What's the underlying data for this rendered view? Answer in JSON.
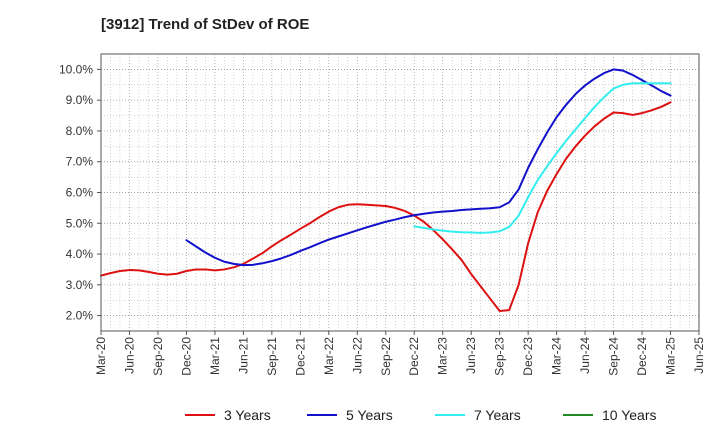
{
  "chart_data": {
    "type": "line",
    "title": "[3912]  Trend of StDev of ROE",
    "xlabel": "",
    "ylabel": "",
    "x_ticks": [
      "Mar-20",
      "Jun-20",
      "Sep-20",
      "Dec-20",
      "Mar-21",
      "Jun-21",
      "Sep-21",
      "Dec-21",
      "Mar-22",
      "Jun-22",
      "Sep-22",
      "Dec-22",
      "Mar-23",
      "Jun-23",
      "Sep-23",
      "Dec-23",
      "Mar-24",
      "Jun-24",
      "Sep-24",
      "Dec-24",
      "Mar-25",
      "Jun-25"
    ],
    "y_ticks": [
      "2.0%",
      "3.0%",
      "4.0%",
      "5.0%",
      "6.0%",
      "7.0%",
      "8.0%",
      "9.0%",
      "10.0%"
    ],
    "ylim": [
      1.5,
      10.5
    ],
    "grid": true,
    "legend_position": "bottom",
    "series": [
      {
        "name": "3 Years",
        "color": "#dd1111",
        "x": [
          "2020-03",
          "2020-04",
          "2020-05",
          "2020-06",
          "2020-07",
          "2020-08",
          "2020-09",
          "2020-10",
          "2020-11",
          "2020-12",
          "2021-01",
          "2021-02",
          "2021-03",
          "2021-04",
          "2021-05",
          "2021-06",
          "2021-07",
          "2021-08",
          "2021-09",
          "2021-10",
          "2021-11",
          "2021-12",
          "2022-01",
          "2022-02",
          "2022-03",
          "2022-04",
          "2022-05",
          "2022-06",
          "2022-07",
          "2022-08",
          "2022-09",
          "2022-10",
          "2022-11",
          "2022-12",
          "2023-01",
          "2023-02",
          "2023-03",
          "2023-04",
          "2023-05",
          "2023-06",
          "2023-07",
          "2023-08",
          "2023-09",
          "2023-10",
          "2023-11",
          "2023-12",
          "2024-01",
          "2024-02",
          "2024-03",
          "2024-04",
          "2024-05",
          "2024-06",
          "2024-07",
          "2024-08",
          "2024-09",
          "2024-10",
          "2024-11",
          "2024-12",
          "2025-01",
          "2025-02",
          "2025-03"
        ],
        "values": [
          3.3,
          3.38,
          3.45,
          3.48,
          3.47,
          3.42,
          3.36,
          3.33,
          3.36,
          3.45,
          3.5,
          3.5,
          3.47,
          3.5,
          3.57,
          3.68,
          3.85,
          4.03,
          4.25,
          4.45,
          4.63,
          4.82,
          5.0,
          5.2,
          5.38,
          5.52,
          5.6,
          5.62,
          5.6,
          5.58,
          5.56,
          5.5,
          5.4,
          5.25,
          5.05,
          4.78,
          4.48,
          4.15,
          3.8,
          3.35,
          2.95,
          2.55,
          2.15,
          2.18,
          3.0,
          4.35,
          5.35,
          6.05,
          6.6,
          7.1,
          7.5,
          7.85,
          8.15,
          8.4,
          8.6,
          8.58,
          8.52,
          8.58,
          8.67,
          8.78,
          8.93
        ]
      },
      {
        "name": "5 Years",
        "color": "#1111cc",
        "x": [
          "2020-12",
          "2021-01",
          "2021-02",
          "2021-03",
          "2021-04",
          "2021-05",
          "2021-06",
          "2021-07",
          "2021-08",
          "2021-09",
          "2021-10",
          "2021-11",
          "2021-12",
          "2022-01",
          "2022-02",
          "2022-03",
          "2022-04",
          "2022-05",
          "2022-06",
          "2022-07",
          "2022-08",
          "2022-09",
          "2022-10",
          "2022-11",
          "2022-12",
          "2023-01",
          "2023-02",
          "2023-03",
          "2023-04",
          "2023-05",
          "2023-06",
          "2023-07",
          "2023-08",
          "2023-09",
          "2023-10",
          "2023-11",
          "2023-12",
          "2024-01",
          "2024-02",
          "2024-03",
          "2024-04",
          "2024-05",
          "2024-06",
          "2024-07",
          "2024-08",
          "2024-09",
          "2024-10",
          "2024-11",
          "2024-12",
          "2025-01",
          "2025-02",
          "2025-03"
        ],
        "values": [
          4.45,
          4.25,
          4.05,
          3.88,
          3.75,
          3.68,
          3.64,
          3.65,
          3.7,
          3.77,
          3.86,
          3.97,
          4.1,
          4.22,
          4.35,
          4.47,
          4.57,
          4.67,
          4.77,
          4.87,
          4.96,
          5.05,
          5.12,
          5.2,
          5.26,
          5.31,
          5.35,
          5.38,
          5.4,
          5.43,
          5.45,
          5.47,
          5.49,
          5.52,
          5.68,
          6.1,
          6.8,
          7.4,
          7.95,
          8.45,
          8.85,
          9.2,
          9.48,
          9.7,
          9.88,
          10.0,
          9.96,
          9.82,
          9.65,
          9.48,
          9.3,
          9.15
        ]
      },
      {
        "name": "7 Years",
        "color": "#33eeee",
        "x": [
          "2022-12",
          "2023-01",
          "2023-02",
          "2023-03",
          "2023-04",
          "2023-05",
          "2023-06",
          "2023-07",
          "2023-08",
          "2023-09",
          "2023-10",
          "2023-11",
          "2023-12",
          "2024-01",
          "2024-02",
          "2024-03",
          "2024-04",
          "2024-05",
          "2024-06",
          "2024-07",
          "2024-08",
          "2024-09",
          "2024-10",
          "2024-11",
          "2024-12",
          "2025-01",
          "2025-02",
          "2025-03"
        ],
        "values": [
          4.9,
          4.85,
          4.8,
          4.76,
          4.73,
          4.71,
          4.7,
          4.69,
          4.7,
          4.74,
          4.88,
          5.25,
          5.85,
          6.4,
          6.85,
          7.28,
          7.68,
          8.05,
          8.42,
          8.78,
          9.1,
          9.38,
          9.5,
          9.55,
          9.55,
          9.55,
          9.55,
          9.55
        ]
      },
      {
        "name": "10 Years",
        "color": "#228822",
        "x": [],
        "values": []
      }
    ]
  }
}
